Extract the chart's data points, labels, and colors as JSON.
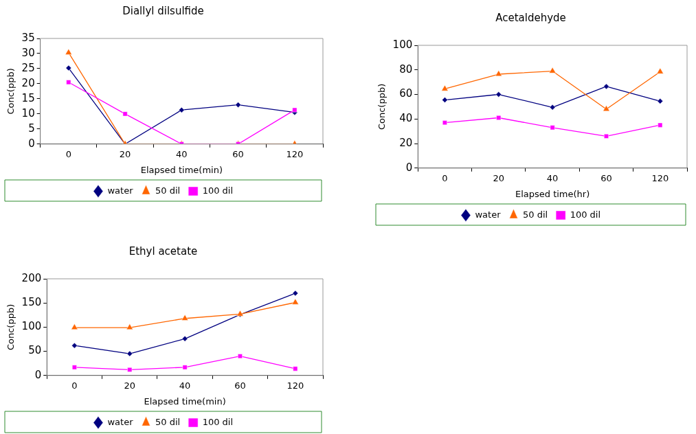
{
  "chart_data": [
    {
      "type": "line",
      "title": "Diallyl dilsulfide",
      "xlabel": "Elapsed time(min)",
      "ylabel": "Conc(ppb)",
      "categories": [
        "0",
        "20",
        "40",
        "60",
        "120"
      ],
      "ylim": [
        0,
        35
      ],
      "yticks": [
        0,
        5,
        10,
        15,
        20,
        25,
        30,
        35
      ],
      "grid": false,
      "legend": "bottom",
      "series": [
        {
          "name": "water",
          "color": "#000080",
          "marker": "diamond",
          "values": [
            25.2,
            0,
            11.3,
            13,
            10.5
          ]
        },
        {
          "name": "50 dil",
          "color": "#ff6600",
          "marker": "triangle",
          "values": [
            30.3,
            0,
            0,
            0,
            0
          ]
        },
        {
          "name": "100 dil",
          "color": "#ff00ff",
          "marker": "square",
          "values": [
            20.5,
            10,
            0,
            0,
            11.3
          ]
        }
      ]
    },
    {
      "type": "line",
      "title": "Acetaldehyde",
      "xlabel": "Elapsed time(hr)",
      "ylabel": "Conc(ppb)",
      "categories": [
        "0",
        "20",
        "40",
        "60",
        "120"
      ],
      "ylim": [
        0,
        100
      ],
      "yticks": [
        0,
        20,
        40,
        60,
        80,
        100
      ],
      "grid": false,
      "legend": "bottom",
      "series": [
        {
          "name": "water",
          "color": "#000080",
          "marker": "diamond",
          "values": [
            55.5,
            60,
            49.5,
            66.5,
            54.5
          ]
        },
        {
          "name": "50 dil",
          "color": "#ff6600",
          "marker": "triangle",
          "values": [
            64.5,
            76.5,
            79,
            48,
            78.5
          ]
        },
        {
          "name": "100 dil",
          "color": "#ff00ff",
          "marker": "square",
          "values": [
            37,
            41,
            33,
            26,
            35
          ]
        }
      ]
    },
    {
      "type": "line",
      "title": "Ethyl acetate",
      "xlabel": "Elapsed time(min)",
      "ylabel": "Conc(ppb)",
      "categories": [
        "0",
        "20",
        "40",
        "60",
        "120"
      ],
      "ylim": [
        0,
        200
      ],
      "yticks": [
        0,
        50,
        100,
        150,
        200
      ],
      "grid": false,
      "legend": "bottom",
      "series": [
        {
          "name": "water",
          "color": "#000080",
          "marker": "diamond",
          "values": [
            62,
            45,
            76,
            126,
            170
          ]
        },
        {
          "name": "50 dil",
          "color": "#ff6600",
          "marker": "triangle",
          "values": [
            99,
            99,
            118,
            127,
            151
          ]
        },
        {
          "name": "100 dil",
          "color": "#ff00ff",
          "marker": "square",
          "values": [
            17,
            12,
            17,
            40,
            14
          ]
        }
      ]
    }
  ]
}
